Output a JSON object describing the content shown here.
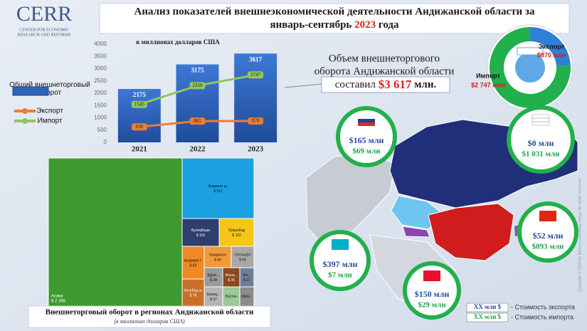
{
  "header": {
    "logo": "CERR",
    "logo_subtitle": [
      "CENTER FOR ECONOMIC",
      "RESEARCH AND REFORMS"
    ],
    "title": [
      "Анализ показателей внешнеэкономической деятельности Андижанской области за",
      "январь-сентябрь",
      "2023",
      "года"
    ]
  },
  "summary": {
    "lines": [
      "Объем внешнеторгового",
      "оборота Андижанской области"
    ],
    "prefix": "составил",
    "amount": "$3 617",
    "unit": "млн."
  },
  "chart_data": [
    {
      "type": "bar",
      "subtitle": "в миллионах долларов США",
      "categories": [
        "2021",
        "2022",
        "2023"
      ],
      "series": [
        {
          "name": "Общий внешнеторговый оборот",
          "type": "bar",
          "color": "#2f63b8",
          "values": [
            2175,
            3175,
            3617
          ]
        },
        {
          "name": "Экспорт",
          "type": "line",
          "color": "#ed7d31",
          "values": [
            630,
            865,
            870
          ]
        },
        {
          "name": "Импорт",
          "type": "line",
          "color": "#92c55a",
          "values": [
            1545,
            2310,
            2747
          ]
        }
      ],
      "ylim": [
        0,
        4000
      ],
      "yticks": [
        0,
        500,
        1000,
        1500,
        2000,
        2500,
        3000,
        3500,
        4000
      ],
      "grid": false
    },
    {
      "type": "pie",
      "donut": true,
      "categories": [
        "Экспорт",
        "Импорт"
      ],
      "values": [
        870,
        2747
      ],
      "value_labels": [
        "$870 млн",
        "$2 747 млн"
      ],
      "colors": [
        "#2f7fd6",
        "#21b04b"
      ]
    },
    {
      "type": "treemap",
      "title": "Внешнеторговый оборот в регионах Андижанской области",
      "subtitle": "(в миллионах долларов США)",
      "categories": [
        "Асака",
        "Андижан ш.",
        "Булоқбоши",
        "Хўжаобод",
        "Андижан т.",
        "Шахрихон",
        "Олтинкўл",
        "Хонобод ш.",
        "Қўрғо...",
        "Балиқ...",
        "Жала...",
        "Ма...",
        "Бўстон",
        "Избо..."
      ],
      "values": [
        2368,
        511,
        116,
        112,
        82,
        69,
        59,
        76,
        38,
        37,
        35,
        21,
        30,
        25
      ],
      "value_labels": [
        "$ 2 368",
        "$ 511",
        "$ 116",
        "$ 112",
        "$ 82",
        "$ 69",
        "$ 59",
        "$ 76",
        "$ 38",
        "$ 37",
        "$ 35",
        "$ 21",
        null,
        null
      ],
      "colors": [
        "#3e9a2e",
        "#1ba1e2",
        "#2e3e6e",
        "#f5c518",
        "#f08a24",
        "#f29a3a",
        "#a8a8a8",
        "#c8702a",
        "#9a9a9a",
        "#b5b5b5",
        "#8a4a1c",
        "#6f7f9a",
        "#9cc89a",
        "#8c8c8c"
      ]
    }
  ],
  "map": {
    "partners": [
      {
        "export": "$165 млн",
        "import": "$69 млн"
      },
      {
        "export": "$0 млн",
        "import": "$1 031 млн"
      },
      {
        "export": "$52 млн",
        "import": "$893 млн"
      },
      {
        "export": "$397 млн",
        "import": "$7 млн"
      },
      {
        "export": "$150 млн",
        "import": "$29 млн"
      }
    ],
    "legend": [
      {
        "key": "XX млн $",
        "text": "- Стоимость экспорта"
      },
      {
        "key": "XX млн $",
        "text": "- Стоимость импорта"
      }
    ]
  },
  "copyright": "Copyright © 2019 by Berlon Consulting Group. All rights reserved."
}
